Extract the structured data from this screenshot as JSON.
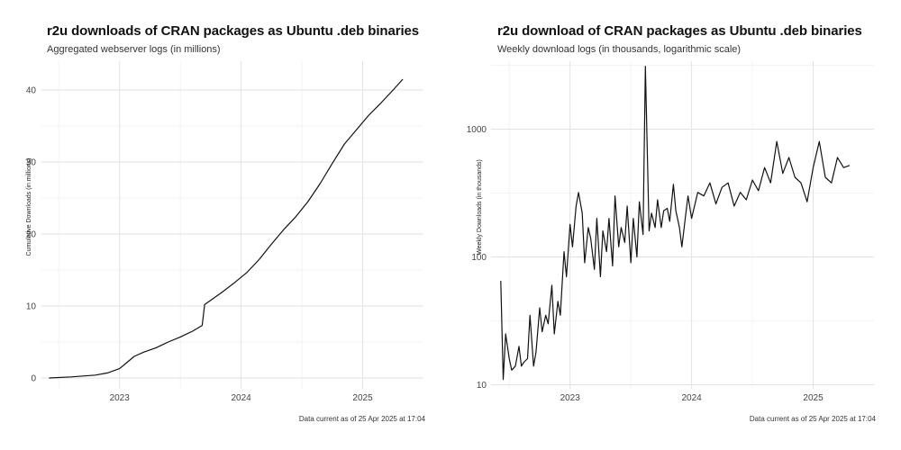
{
  "chart_data": [
    {
      "type": "line",
      "title": "r2u downloads of CRAN packages as Ubuntu .deb binaries",
      "subtitle": "Aggregated webserver logs (in millions)",
      "xlabel": "",
      "ylabel": "Cumulative Downloads (in millions)",
      "caption": "Data current as of  25 Apr 2025 at 17:04",
      "x_ticks": [
        {
          "label": "2023",
          "value": 2023.0
        },
        {
          "label": "2024",
          "value": 2024.0
        },
        {
          "label": "2025",
          "value": 2025.0
        }
      ],
      "y_ticks": [
        0,
        10,
        20,
        30,
        40
      ],
      "xlim": [
        2022.35,
        2025.5
      ],
      "ylim": [
        -1.5,
        44
      ],
      "grid": true,
      "series": [
        {
          "x": [
            2022.42,
            2022.6,
            2022.8,
            2022.9,
            2023.0,
            2023.05,
            2023.12,
            2023.2,
            2023.3,
            2023.4,
            2023.5,
            2023.55,
            2023.6,
            2023.68,
            2023.7,
            2023.75,
            2023.85,
            2023.95,
            2024.05,
            2024.15,
            2024.25,
            2024.35,
            2024.45,
            2024.55,
            2024.65,
            2024.75,
            2024.85,
            2024.95,
            2025.05,
            2025.15,
            2025.25,
            2025.33
          ],
          "y": [
            0.0,
            0.15,
            0.4,
            0.7,
            1.3,
            2.0,
            3.0,
            3.6,
            4.2,
            5.0,
            5.7,
            6.1,
            6.5,
            7.3,
            10.2,
            10.8,
            12.0,
            13.3,
            14.7,
            16.5,
            18.6,
            20.6,
            22.4,
            24.5,
            27.0,
            29.8,
            32.5,
            34.5,
            36.5,
            38.2,
            40.0,
            41.5
          ]
        }
      ]
    },
    {
      "type": "line",
      "title": "r2u download of CRAN packages as Ubuntu .deb binaries",
      "subtitle": "Weekly download logs (in thousands, logarithmic scale)",
      "xlabel": "",
      "ylabel": "Weekly Downloads (in thousands)",
      "caption": "Data current as of  25 Apr 2025 at 17:04",
      "x_ticks": [
        {
          "label": "2023",
          "value": 2023.0
        },
        {
          "label": "2024",
          "value": 2024.0
        },
        {
          "label": "2025",
          "value": 2025.0
        }
      ],
      "y_ticks": [
        {
          "label": "10",
          "value": 10
        },
        {
          "label": "100",
          "value": 100
        },
        {
          "label": "1000",
          "value": 1000
        }
      ],
      "log_y": true,
      "xlim": [
        2022.35,
        2025.5
      ],
      "ylim": [
        9.3,
        3400
      ],
      "grid": true,
      "series": [
        {
          "x": [
            2022.43,
            2022.45,
            2022.47,
            2022.5,
            2022.52,
            2022.55,
            2022.58,
            2022.6,
            2022.62,
            2022.65,
            2022.67,
            2022.7,
            2022.72,
            2022.75,
            2022.77,
            2022.8,
            2022.82,
            2022.85,
            2022.87,
            2022.9,
            2022.92,
            2022.95,
            2022.97,
            2023.0,
            2023.02,
            2023.05,
            2023.07,
            2023.1,
            2023.12,
            2023.15,
            2023.17,
            2023.2,
            2023.22,
            2023.25,
            2023.27,
            2023.3,
            2023.32,
            2023.35,
            2023.37,
            2023.4,
            2023.42,
            2023.45,
            2023.47,
            2023.5,
            2023.52,
            2023.55,
            2023.57,
            2023.6,
            2023.62,
            2023.65,
            2023.67,
            2023.7,
            2023.72,
            2023.75,
            2023.77,
            2023.8,
            2023.82,
            2023.85,
            2023.87,
            2023.9,
            2023.92,
            2023.95,
            2023.97,
            2024.0,
            2024.05,
            2024.1,
            2024.15,
            2024.2,
            2024.25,
            2024.3,
            2024.35,
            2024.4,
            2024.45,
            2024.5,
            2024.55,
            2024.6,
            2024.65,
            2024.7,
            2024.75,
            2024.8,
            2024.85,
            2024.9,
            2024.95,
            2025.0,
            2025.05,
            2025.1,
            2025.15,
            2025.2,
            2025.25,
            2025.3
          ],
          "y": [
            65,
            11,
            25,
            16,
            13,
            14,
            20,
            14,
            15,
            16,
            35,
            14,
            18,
            40,
            26,
            35,
            30,
            60,
            25,
            45,
            35,
            110,
            70,
            180,
            120,
            250,
            320,
            220,
            90,
            170,
            140,
            80,
            200,
            70,
            160,
            110,
            200,
            85,
            300,
            120,
            170,
            130,
            250,
            90,
            200,
            100,
            270,
            150,
            3100,
            160,
            220,
            170,
            280,
            170,
            230,
            240,
            190,
            370,
            230,
            170,
            120,
            210,
            300,
            200,
            320,
            300,
            380,
            260,
            350,
            380,
            250,
            320,
            280,
            400,
            330,
            500,
            380,
            800,
            450,
            600,
            420,
            380,
            270,
            500,
            800,
            420,
            380,
            600,
            500,
            520
          ]
        }
      ]
    }
  ]
}
